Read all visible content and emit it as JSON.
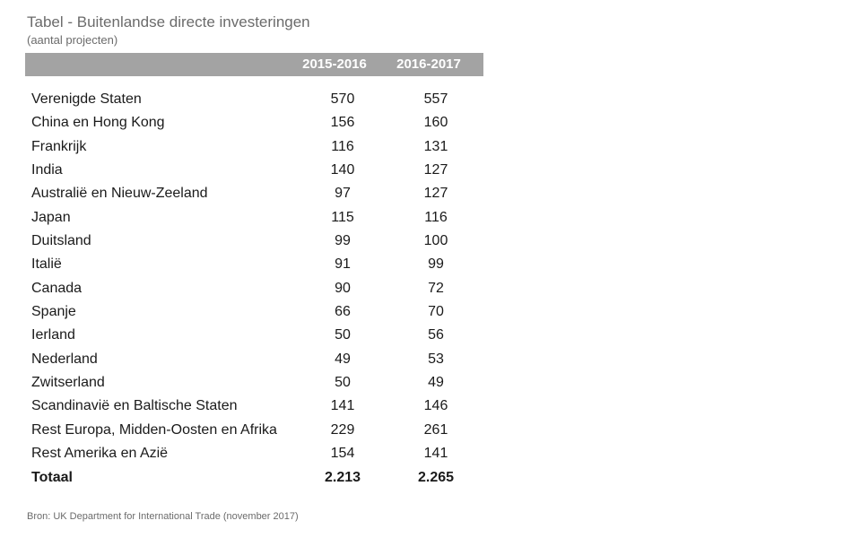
{
  "title": "Tabel - Buitenlandse directe investeringen",
  "subtitle": "(aantal projecten)",
  "columns": [
    "2015-2016",
    "2016-2017"
  ],
  "rows": [
    {
      "label": "Verenigde Staten",
      "v1": "570",
      "v2": "557"
    },
    {
      "label": "China en Hong Kong",
      "v1": "156",
      "v2": "160"
    },
    {
      "label": "Frankrijk",
      "v1": "116",
      "v2": "131"
    },
    {
      "label": "India",
      "v1": "140",
      "v2": "127"
    },
    {
      "label": "Australië en Nieuw-Zeeland",
      "v1": "97",
      "v2": "127"
    },
    {
      "label": "Japan",
      "v1": "115",
      "v2": "116"
    },
    {
      "label": "Duitsland",
      "v1": "99",
      "v2": "100"
    },
    {
      "label": "Italië",
      "v1": "91",
      "v2": "99"
    },
    {
      "label": "Canada",
      "v1": "90",
      "v2": "72"
    },
    {
      "label": "Spanje",
      "v1": "66",
      "v2": "70"
    },
    {
      "label": "Ierland",
      "v1": "50",
      "v2": "56"
    },
    {
      "label": "Nederland",
      "v1": "49",
      "v2": "53"
    },
    {
      "label": "Zwitserland",
      "v1": "50",
      "v2": "49"
    },
    {
      "label": "Scandinavië en Baltische Staten",
      "v1": "141",
      "v2": "146"
    },
    {
      "label": "Rest Europa, Midden-Oosten en Afrika",
      "v1": "229",
      "v2": "261"
    },
    {
      "label": "Rest Amerika en Azië",
      "v1": "154",
      "v2": "141"
    }
  ],
  "total": {
    "label": "Totaal",
    "v1": "2.213",
    "v2": "2.265"
  },
  "source": "Bron: UK Department for International Trade (november 2017)",
  "colors": {
    "header_bg": "#a3a3a3",
    "header_text": "#ffffff",
    "muted_text": "#6b6b6b"
  },
  "chart_data": {
    "type": "table",
    "title": "Tabel - Buitenlandse directe investeringen",
    "subtitle": "(aantal projecten)",
    "columns": [
      "",
      "2015-2016",
      "2016-2017"
    ],
    "rows": [
      [
        "Verenigde Staten",
        570,
        557
      ],
      [
        "China en Hong Kong",
        156,
        160
      ],
      [
        "Frankrijk",
        116,
        131
      ],
      [
        "India",
        140,
        127
      ],
      [
        "Australië en Nieuw-Zeeland",
        97,
        127
      ],
      [
        "Japan",
        115,
        116
      ],
      [
        "Duitsland",
        99,
        100
      ],
      [
        "Italië",
        91,
        99
      ],
      [
        "Canada",
        90,
        72
      ],
      [
        "Spanje",
        66,
        70
      ],
      [
        "Ierland",
        50,
        56
      ],
      [
        "Nederland",
        49,
        53
      ],
      [
        "Zwitserland",
        50,
        49
      ],
      [
        "Scandinavië en Baltische Staten",
        141,
        146
      ],
      [
        "Rest Europa, Midden-Oosten en Afrika",
        229,
        261
      ],
      [
        "Rest Amerika en Azië",
        154,
        141
      ],
      [
        "Totaal",
        2213,
        2265
      ]
    ]
  }
}
